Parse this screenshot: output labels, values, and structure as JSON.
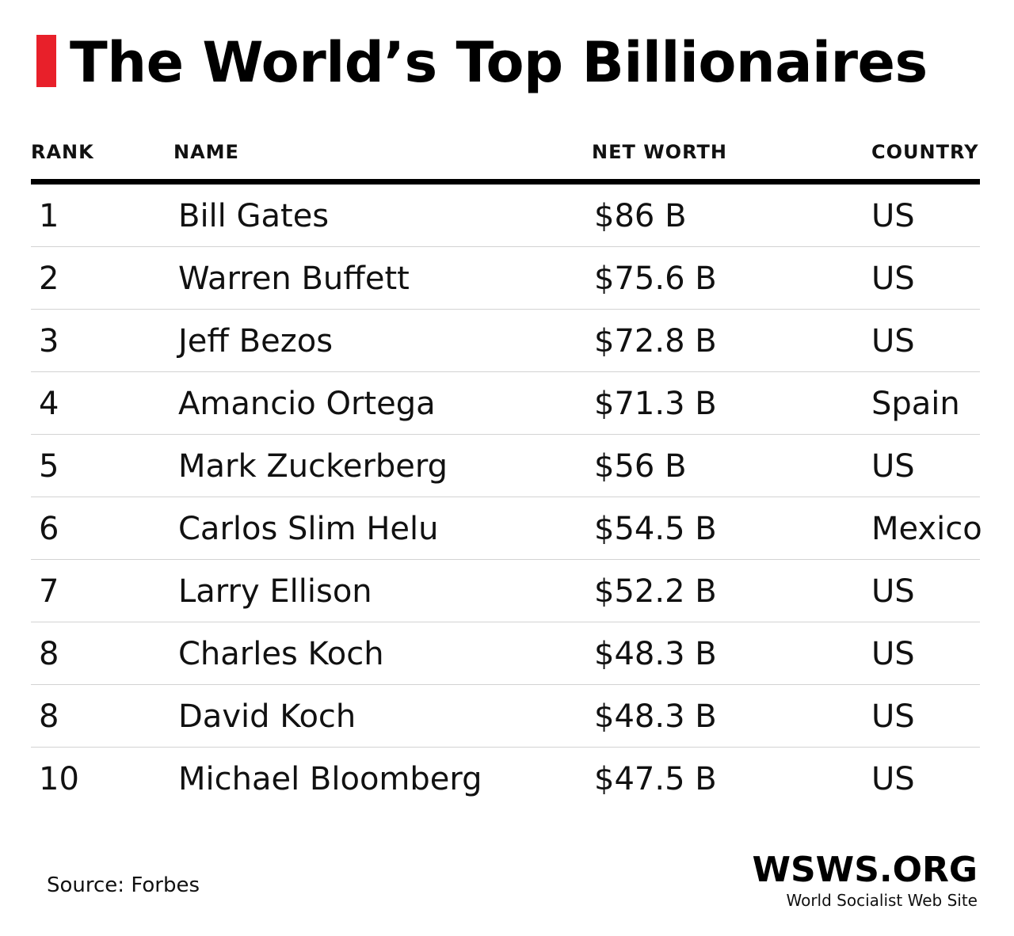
{
  "title": "The World’s Top Billionaires",
  "colors": {
    "accent": "#e8202a",
    "text": "#111111",
    "rule": "#000000",
    "divider": "#d3d3d3"
  },
  "chart_data": {
    "type": "table",
    "columns": [
      "RANK",
      "NAME",
      "NET WORTH",
      "COUNTRY"
    ],
    "rows": [
      {
        "rank": "1",
        "name": "Bill Gates",
        "net_worth": "$86 B",
        "country": "US"
      },
      {
        "rank": "2",
        "name": "Warren Buffett",
        "net_worth": "$75.6 B",
        "country": "US"
      },
      {
        "rank": "3",
        "name": "Jeff Bezos",
        "net_worth": "$72.8 B",
        "country": "US"
      },
      {
        "rank": "4",
        "name": "Amancio Ortega",
        "net_worth": "$71.3 B",
        "country": "Spain"
      },
      {
        "rank": "5",
        "name": "Mark Zuckerberg",
        "net_worth": "$56 B",
        "country": "US"
      },
      {
        "rank": "6",
        "name": "Carlos Slim Helu",
        "net_worth": "$54.5 B",
        "country": "Mexico"
      },
      {
        "rank": "7",
        "name": "Larry Ellison",
        "net_worth": "$52.2 B",
        "country": "US"
      },
      {
        "rank": "8",
        "name": "Charles Koch",
        "net_worth": "$48.3 B",
        "country": "US"
      },
      {
        "rank": "8",
        "name": "David Koch",
        "net_worth": "$48.3 B",
        "country": "US"
      },
      {
        "rank": "10",
        "name": "Michael Bloomberg",
        "net_worth": "$47.5 B",
        "country": "US"
      }
    ]
  },
  "source": "Source: Forbes",
  "logo": {
    "main": "WSWS.ORG",
    "sub": "World Socialist Web Site"
  }
}
